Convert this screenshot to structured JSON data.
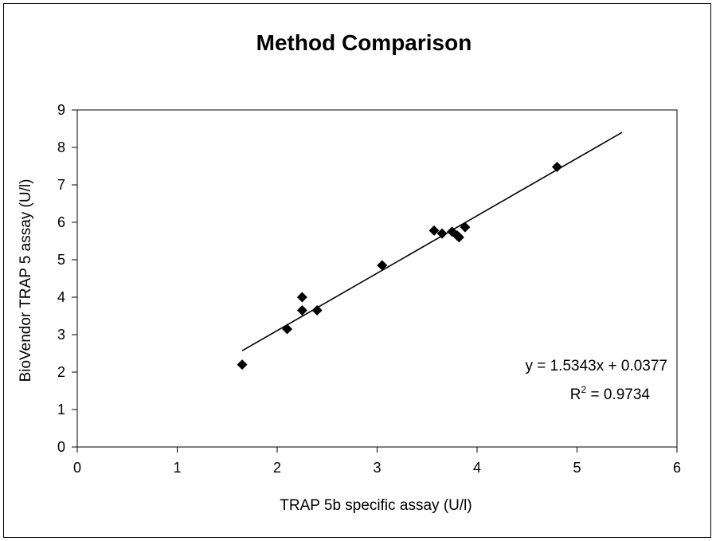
{
  "chart_data": {
    "type": "scatter",
    "title": "Method Comparison",
    "xlabel": "TRAP 5b specific assay (U/l)",
    "ylabel": "BioVendor TRAP 5 assay (U/l)",
    "xlim": [
      0,
      6
    ],
    "ylim": [
      0,
      9
    ],
    "xticks": [
      0,
      1,
      2,
      3,
      4,
      5,
      6
    ],
    "yticks": [
      0,
      1,
      2,
      3,
      4,
      5,
      6,
      7,
      8,
      9
    ],
    "grid": false,
    "legend": "none",
    "marker": "diamond",
    "marker_color": "#000000",
    "points": [
      {
        "x": 1.65,
        "y": 2.2
      },
      {
        "x": 2.1,
        "y": 3.15
      },
      {
        "x": 2.25,
        "y": 4.0
      },
      {
        "x": 2.25,
        "y": 3.65
      },
      {
        "x": 2.4,
        "y": 3.65
      },
      {
        "x": 3.05,
        "y": 4.85
      },
      {
        "x": 3.57,
        "y": 5.78
      },
      {
        "x": 3.65,
        "y": 5.7
      },
      {
        "x": 3.75,
        "y": 5.75
      },
      {
        "x": 3.8,
        "y": 5.65
      },
      {
        "x": 3.82,
        "y": 5.6
      },
      {
        "x": 3.88,
        "y": 5.87
      },
      {
        "x": 4.8,
        "y": 7.48
      }
    ],
    "trendline": {
      "type": "linear",
      "slope": 1.5343,
      "intercept": 0.0377,
      "x_range": [
        1.65,
        5.45
      ]
    },
    "annotations": {
      "equation": "y = 1.5343x + 0.0377",
      "r2_prefix": "R",
      "r2_exponent": "2",
      "r2_value": " = 0.9734"
    }
  }
}
